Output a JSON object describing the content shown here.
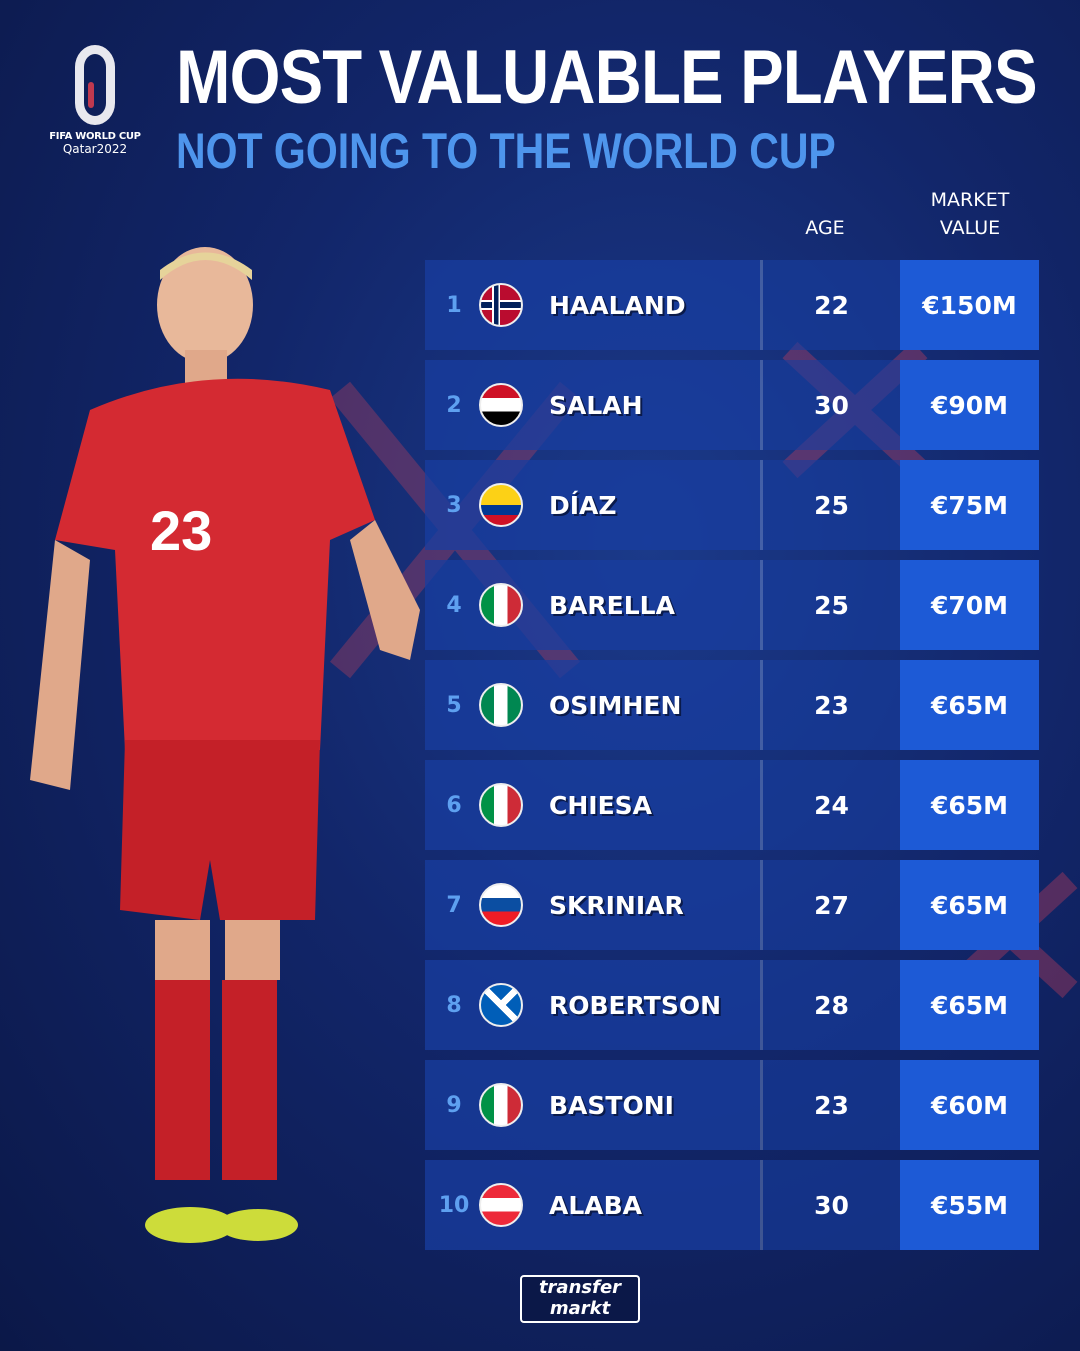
{
  "logo": {
    "line1": "FIFA WORLD CUP",
    "line2": "Qatar2022"
  },
  "header": {
    "title": "MOST VALUABLE PLAYERS",
    "subtitle": "NOT GOING TO THE WORLD CUP"
  },
  "columns": {
    "age": "AGE",
    "value_line1": "MARKET",
    "value_line2": "VALUE"
  },
  "colors": {
    "accent": "#4e95ec",
    "value_cell": "#1d5ad6",
    "background": "#12266a"
  },
  "players": [
    {
      "rank": "1",
      "flag": "norway",
      "name": "HAALAND",
      "age": "22",
      "value": "€150M"
    },
    {
      "rank": "2",
      "flag": "egypt",
      "name": "SALAH",
      "age": "30",
      "value": "€90M"
    },
    {
      "rank": "3",
      "flag": "colombia",
      "name": "DÍAZ",
      "age": "25",
      "value": "€75M"
    },
    {
      "rank": "4",
      "flag": "italy",
      "name": "BARELLA",
      "age": "25",
      "value": "€70M"
    },
    {
      "rank": "5",
      "flag": "nigeria",
      "name": "OSIMHEN",
      "age": "23",
      "value": "€65M"
    },
    {
      "rank": "6",
      "flag": "italy",
      "name": "CHIESA",
      "age": "24",
      "value": "€65M"
    },
    {
      "rank": "7",
      "flag": "slovakia",
      "name": "SKRINIAR",
      "age": "27",
      "value": "€65M"
    },
    {
      "rank": "8",
      "flag": "scotland",
      "name": "ROBERTSON",
      "age": "28",
      "value": "€65M"
    },
    {
      "rank": "9",
      "flag": "italy",
      "name": "BASTONI",
      "age": "23",
      "value": "€60M"
    },
    {
      "rank": "10",
      "flag": "austria",
      "name": "ALABA",
      "age": "30",
      "value": "€55M"
    }
  ],
  "footer": {
    "brand_line1": "transfer",
    "brand_line2": "markt"
  }
}
